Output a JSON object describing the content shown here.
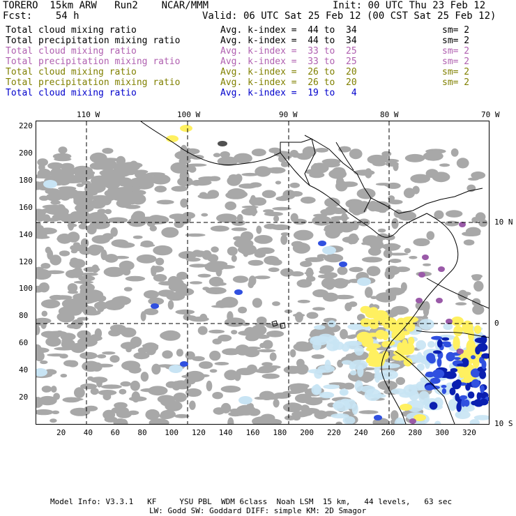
{
  "header": {
    "model": "TORERO  15km ARW   Run2    NCAR/MMM",
    "init": "Init: 00 UTC Thu 23 Feb 12",
    "fcst": "Fcst:    54 h",
    "valid": "Valid: 06 UTC Sat 25 Feb 12 (00 CST Sat 25 Feb 12)"
  },
  "fields": [
    {
      "name": "Total cloud mixing ratio",
      "avg": "Avg. k-index =  44 to  34",
      "sm": "sm= 2",
      "color": "#000000"
    },
    {
      "name": "Total precipitation mixing ratio",
      "avg": "Avg. k-index =  44 to  34",
      "sm": "sm= 2",
      "color": "#000000"
    },
    {
      "name": "Total cloud mixing ratio",
      "avg": "Avg. k-index =  33 to  25",
      "sm": "sm= 2",
      "color": "#b060b0"
    },
    {
      "name": "Total precipitation mixing ratio",
      "avg": "Avg. k-index =  33 to  25",
      "sm": "sm= 2",
      "color": "#b060b0"
    },
    {
      "name": "Total cloud mixing ratio",
      "avg": "Avg. k-index =  26 to  20",
      "sm": "sm= 2",
      "color": "#808000"
    },
    {
      "name": "Total precipitation mixing ratio",
      "avg": "Avg. k-index =  26 to  20",
      "sm": "sm= 2",
      "color": "#808000"
    },
    {
      "name": "Total cloud mixing ratio",
      "avg": "Avg. k-index =  19 to   4",
      "sm": "",
      "color": "#0000cc"
    }
  ],
  "axes": {
    "top_lon": [
      "110 W",
      "100 W",
      "90 W",
      "80 W",
      "70 W"
    ],
    "right_lat": [
      "10 N",
      "0",
      "10 S"
    ],
    "left_grid": [
      "220",
      "200",
      "180",
      "160",
      "140",
      "120",
      "100",
      "80",
      "60",
      "40",
      "20"
    ],
    "bottom_grid": [
      "20",
      "40",
      "60",
      "80",
      "100",
      "120",
      "140",
      "160",
      "180",
      "200",
      "220",
      "240",
      "260",
      "280",
      "300",
      "320"
    ]
  },
  "colors": {
    "gray_cloud": "#a8a8a8",
    "light_blue": "#c8e4f4",
    "blue": "#3050e0",
    "dark_blue": "#0a1fb0",
    "yellow": "#fff060",
    "purple": "#9a5aa8"
  },
  "footer": {
    "line1": "Model Info: V3.3.1   KF     YSU PBL  WDM 6class  Noah LSM  15 km,   44 levels,   63 sec",
    "line2": "LW: Godd SW: Goddard DIFF: simple KM: 2D Smagor"
  }
}
